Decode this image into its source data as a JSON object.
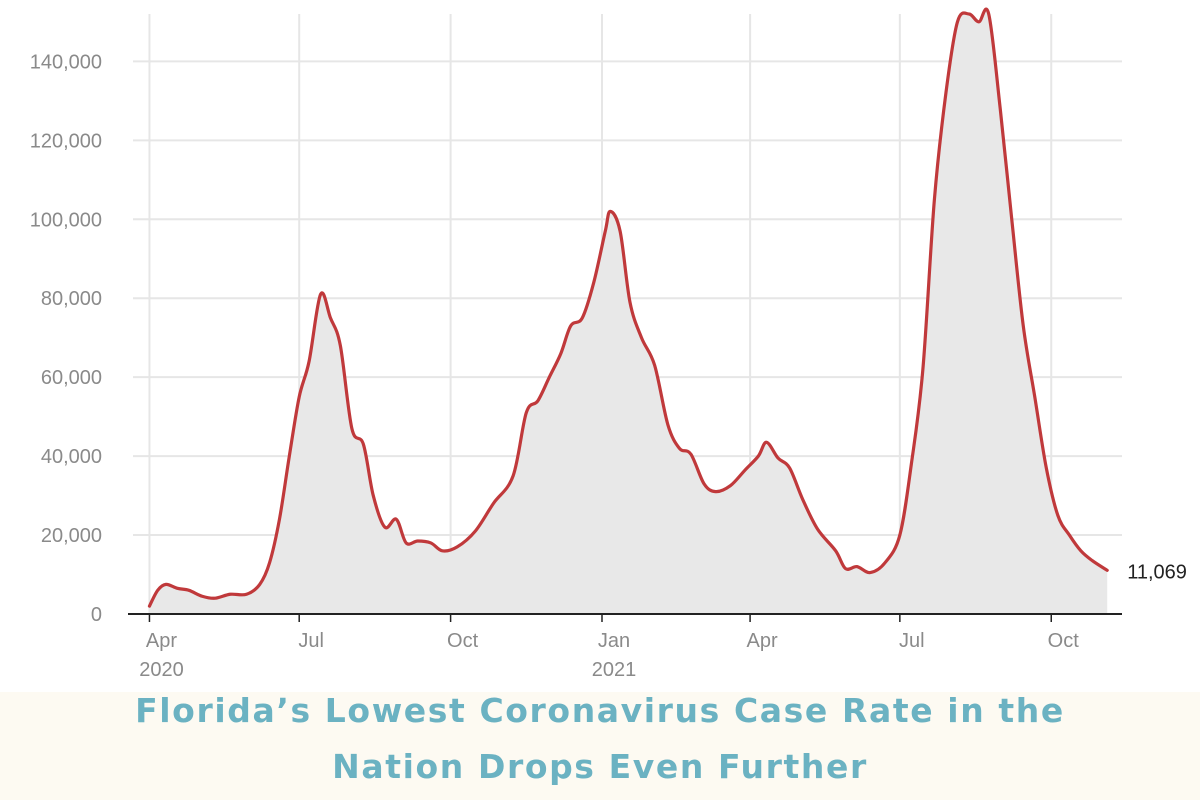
{
  "chart_data": {
    "type": "area",
    "title": "Florida’s Lowest Coronavirus Case Rate in the Nation Drops Even Further",
    "title_lines": [
      "Florida’s Lowest Coronavirus Case Rate in the",
      "Nation Drops Even Further"
    ],
    "xlabel": "",
    "ylabel": "",
    "x_ticks": [
      {
        "date": "2020-04-01",
        "label": "Apr",
        "sublabel": "2020"
      },
      {
        "date": "2020-07-01",
        "label": "Jul",
        "sublabel": ""
      },
      {
        "date": "2020-10-01",
        "label": "Oct",
        "sublabel": ""
      },
      {
        "date": "2021-01-01",
        "label": "Jan",
        "sublabel": "2021"
      },
      {
        "date": "2021-04-01",
        "label": "Apr",
        "sublabel": ""
      },
      {
        "date": "2021-07-01",
        "label": "Jul",
        "sublabel": ""
      },
      {
        "date": "2021-10-01",
        "label": "Oct",
        "sublabel": ""
      }
    ],
    "y_ticks": [
      0,
      20000,
      40000,
      60000,
      80000,
      100000,
      120000,
      140000
    ],
    "y_tick_labels": [
      "0",
      "20,000",
      "40,000",
      "60,000",
      "80,000",
      "100,000",
      "120,000",
      "140,000"
    ],
    "xlim": [
      "2020-03-22",
      "2021-11-13"
    ],
    "ylim": [
      0,
      152000
    ],
    "grid": true,
    "series": [
      {
        "color": "#c0393b",
        "fill": "#e8e8e8",
        "end_label": "11,069",
        "points": [
          [
            "2020-04-01",
            2000
          ],
          [
            "2020-04-06",
            6000
          ],
          [
            "2020-04-11",
            7500
          ],
          [
            "2020-04-18",
            6500
          ],
          [
            "2020-04-25",
            6000
          ],
          [
            "2020-05-03",
            4500
          ],
          [
            "2020-05-11",
            4000
          ],
          [
            "2020-05-20",
            5000
          ],
          [
            "2020-05-30",
            5000
          ],
          [
            "2020-06-07",
            7500
          ],
          [
            "2020-06-13",
            13000
          ],
          [
            "2020-06-19",
            24000
          ],
          [
            "2020-06-25",
            40000
          ],
          [
            "2020-07-01",
            55000
          ],
          [
            "2020-07-07",
            64000
          ],
          [
            "2020-07-14",
            81000
          ],
          [
            "2020-07-20",
            75000
          ],
          [
            "2020-07-26",
            68000
          ],
          [
            "2020-08-02",
            47000
          ],
          [
            "2020-08-09",
            43000
          ],
          [
            "2020-08-15",
            30000
          ],
          [
            "2020-08-22",
            22000
          ],
          [
            "2020-08-29",
            24000
          ],
          [
            "2020-09-04",
            18000
          ],
          [
            "2020-09-11",
            18500
          ],
          [
            "2020-09-19",
            18000
          ],
          [
            "2020-09-26",
            16000
          ],
          [
            "2020-10-05",
            17000
          ],
          [
            "2020-10-16",
            21000
          ],
          [
            "2020-10-27",
            28000
          ],
          [
            "2020-11-08",
            35000
          ],
          [
            "2020-11-16",
            51000
          ],
          [
            "2020-11-23",
            54000
          ],
          [
            "2020-11-30",
            60000
          ],
          [
            "2020-12-07",
            66000
          ],
          [
            "2020-12-13",
            73000
          ],
          [
            "2020-12-20",
            75000
          ],
          [
            "2020-12-27",
            84000
          ],
          [
            "2021-01-03",
            97000
          ],
          [
            "2021-01-06",
            102000
          ],
          [
            "2021-01-12",
            97000
          ],
          [
            "2021-01-18",
            79000
          ],
          [
            "2021-01-25",
            70000
          ],
          [
            "2021-02-02",
            63000
          ],
          [
            "2021-02-10",
            48000
          ],
          [
            "2021-02-17",
            42000
          ],
          [
            "2021-02-24",
            40500
          ],
          [
            "2021-03-04",
            33000
          ],
          [
            "2021-03-11",
            31000
          ],
          [
            "2021-03-20",
            32500
          ],
          [
            "2021-03-29",
            36500
          ],
          [
            "2021-04-06",
            40000
          ],
          [
            "2021-04-11",
            43500
          ],
          [
            "2021-04-18",
            39500
          ],
          [
            "2021-04-25",
            37000
          ],
          [
            "2021-05-03",
            29000
          ],
          [
            "2021-05-12",
            21500
          ],
          [
            "2021-05-23",
            16000
          ],
          [
            "2021-05-29",
            11500
          ],
          [
            "2021-06-05",
            12000
          ],
          [
            "2021-06-13",
            10500
          ],
          [
            "2021-06-22",
            13000
          ],
          [
            "2021-07-01",
            20000
          ],
          [
            "2021-07-08",
            38000
          ],
          [
            "2021-07-15",
            62000
          ],
          [
            "2021-07-22",
            105000
          ],
          [
            "2021-07-29",
            132000
          ],
          [
            "2021-08-05",
            150000
          ],
          [
            "2021-08-12",
            152000
          ],
          [
            "2021-08-18",
            150000
          ],
          [
            "2021-08-24",
            152000
          ],
          [
            "2021-08-31",
            128000
          ],
          [
            "2021-09-07",
            100000
          ],
          [
            "2021-09-14",
            73000
          ],
          [
            "2021-09-21",
            55000
          ],
          [
            "2021-09-28",
            37000
          ],
          [
            "2021-10-05",
            25000
          ],
          [
            "2021-10-12",
            20000
          ],
          [
            "2021-10-19",
            16000
          ],
          [
            "2021-10-26",
            13500
          ],
          [
            "2021-11-04",
            11069
          ]
        ]
      }
    ]
  },
  "banner": {
    "title_color": "#6bb2c2",
    "background": "#fdfaf2"
  }
}
